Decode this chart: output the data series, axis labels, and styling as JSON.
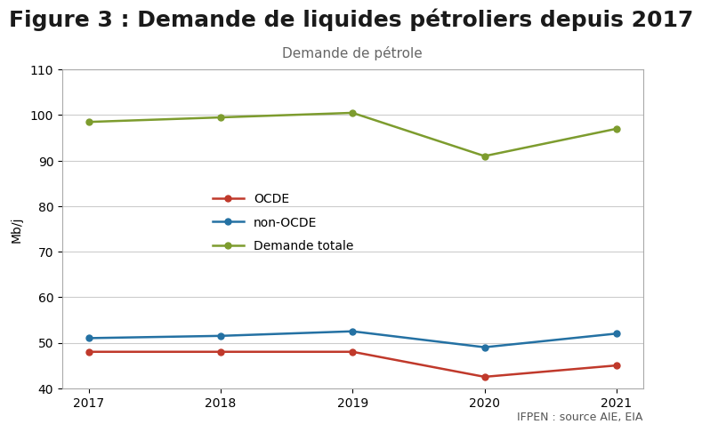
{
  "title": "Figure 3 : Demande de liquides pétroliers depuis 2017",
  "chart_title": "Demande de pétrole",
  "ylabel": "Mb/j",
  "source_text": "IFPEN : source AIE, EIA",
  "years": [
    2017,
    2018,
    2019,
    2020,
    2021
  ],
  "ocde": [
    48.0,
    48.0,
    48.0,
    42.5,
    45.0
  ],
  "non_ocde": [
    51.0,
    51.5,
    52.5,
    49.0,
    52.0
  ],
  "demande_totale": [
    98.5,
    99.5,
    100.5,
    91.0,
    97.0
  ],
  "color_ocde": "#c0392b",
  "color_non_ocde": "#2471a3",
  "color_demande": "#7d9c2e",
  "ylim_min": 40,
  "ylim_max": 110,
  "yticks": [
    40,
    50,
    60,
    70,
    80,
    90,
    100,
    110
  ],
  "legend_labels": [
    "OCDE",
    "non-OCDE",
    "Demande totale"
  ],
  "bg_color": "#ffffff",
  "plot_bg_color": "#ffffff",
  "title_fontsize": 18,
  "chart_title_fontsize": 11,
  "axis_label_fontsize": 10,
  "tick_fontsize": 10,
  "legend_fontsize": 10,
  "source_fontsize": 9,
  "border_color": "#aaaaaa"
}
